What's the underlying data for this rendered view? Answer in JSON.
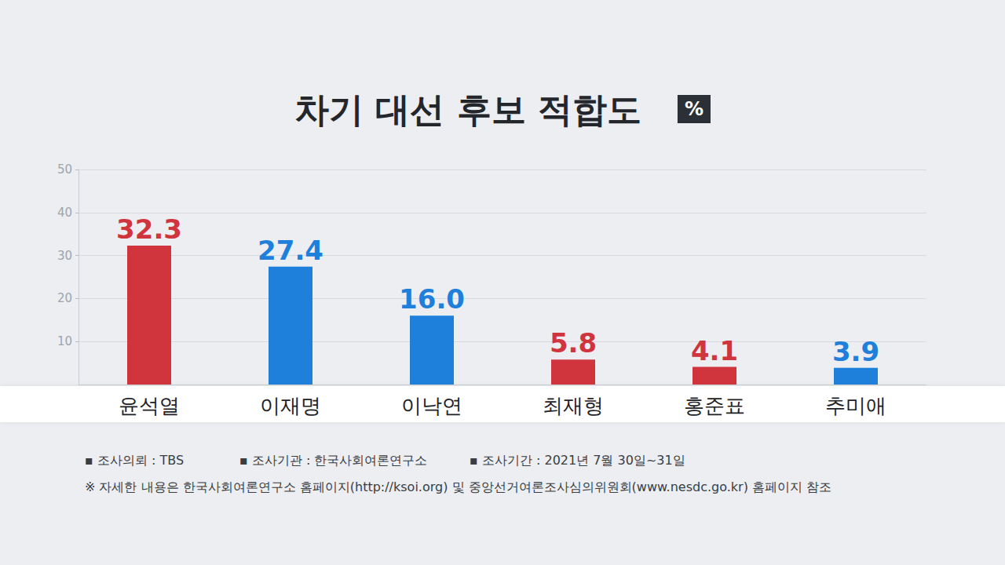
{
  "chart_data": {
    "type": "bar",
    "title": "차기 대선 후보 적합도",
    "ylabel": "%",
    "categories": [
      "윤석열",
      "이재명",
      "이낙연",
      "최재형",
      "홍준표",
      "추미애"
    ],
    "values": [
      32.3,
      27.4,
      16.0,
      5.8,
      4.1,
      3.9
    ],
    "value_labels": [
      "32.3",
      "27.4",
      "16.0",
      "5.8",
      "4.1",
      "3.9"
    ],
    "colors": [
      "#d0343c",
      "#1f80dc",
      "#1f80dc",
      "#d0343c",
      "#d0343c",
      "#1f80dc"
    ],
    "ylim": [
      0,
      50
    ],
    "yticks": [
      10,
      20,
      30,
      40,
      50
    ],
    "grid": true,
    "data_labels": true,
    "annotations": [
      "▪ 조사의뢰 : TBS",
      "▪ 조사기관 : 한국사회여론연구소",
      "▪ 조사기간 : 2021년 7월 30일~31일",
      "※ 자세한 내용은 한국사회여론연구소 홈페이지(http://ksoi.org) 및 중앙선거여론조사심의위원회(www.nesdc.go.kr) 홈페이지 참조"
    ]
  }
}
